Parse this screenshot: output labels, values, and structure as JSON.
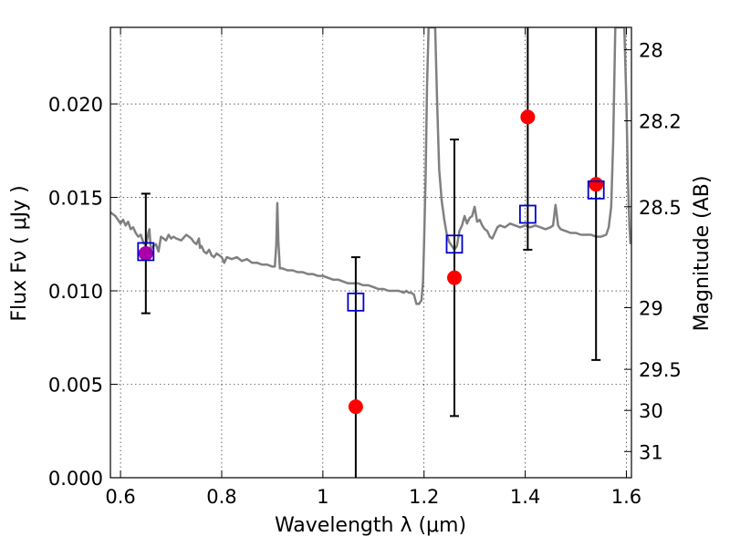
{
  "chart_data": {
    "type": "scatter",
    "title": "",
    "xlabel": "Wavelength  λ (μm)",
    "ylabel": "Flux  Fν  ( μJy )",
    "y2label": "Magnitude (AB)",
    "xlim": [
      0.58,
      1.61
    ],
    "ylim": [
      0.0,
      0.0241
    ],
    "grid": true,
    "x_ticks": [
      0.6,
      0.8,
      1.0,
      1.2,
      1.4,
      1.6
    ],
    "x_tick_labels": [
      "0.6",
      "0.8",
      "1",
      "1.2",
      "1.4",
      "1.6"
    ],
    "y_ticks": [
      0.0,
      0.005,
      0.01,
      0.015,
      0.02
    ],
    "y_tick_labels": [
      "0.000",
      "0.005",
      "0.010",
      "0.015",
      "0.020"
    ],
    "y2_ticks": [
      {
        "label": "28",
        "flux": 0.0229
      },
      {
        "label": "28.2",
        "flux": 0.0191
      },
      {
        "label": "28.5",
        "flux": 0.0145
      },
      {
        "label": "29",
        "flux": 0.0091
      },
      {
        "label": "29.5",
        "flux": 0.0058
      },
      {
        "label": "30",
        "flux": 0.0036
      },
      {
        "label": "31",
        "flux": 0.0014
      }
    ],
    "series": [
      {
        "name": "model-spectrum",
        "kind": "line",
        "color": "#808080",
        "points": [
          [
            0.58,
            0.0142
          ],
          [
            0.59,
            0.014
          ],
          [
            0.6,
            0.0136
          ],
          [
            0.605,
            0.0138
          ],
          [
            0.61,
            0.0135
          ],
          [
            0.615,
            0.0137
          ],
          [
            0.62,
            0.0133
          ],
          [
            0.625,
            0.0134
          ],
          [
            0.63,
            0.0131
          ],
          [
            0.635,
            0.0129
          ],
          [
            0.64,
            0.013
          ],
          [
            0.645,
            0.0126
          ],
          [
            0.65,
            0.0124
          ],
          [
            0.655,
            0.0131
          ],
          [
            0.657,
            0.0133
          ],
          [
            0.66,
            0.0122
          ],
          [
            0.665,
            0.0124
          ],
          [
            0.67,
            0.0125
          ],
          [
            0.675,
            0.0121
          ],
          [
            0.68,
            0.0129
          ],
          [
            0.685,
            0.0128
          ],
          [
            0.69,
            0.0127
          ],
          [
            0.695,
            0.013
          ],
          [
            0.7,
            0.0128
          ],
          [
            0.705,
            0.0129
          ],
          [
            0.71,
            0.0128
          ],
          [
            0.72,
            0.0127
          ],
          [
            0.73,
            0.013
          ],
          [
            0.74,
            0.0128
          ],
          [
            0.745,
            0.0126
          ],
          [
            0.75,
            0.0125
          ],
          [
            0.755,
            0.0128
          ],
          [
            0.757,
            0.0123
          ],
          [
            0.76,
            0.0124
          ],
          [
            0.765,
            0.0121
          ],
          [
            0.77,
            0.012
          ],
          [
            0.775,
            0.0122
          ],
          [
            0.78,
            0.0119
          ],
          [
            0.785,
            0.0118
          ],
          [
            0.79,
            0.012
          ],
          [
            0.8,
            0.0118
          ],
          [
            0.805,
            0.0115
          ],
          [
            0.81,
            0.0118
          ],
          [
            0.82,
            0.0117
          ],
          [
            0.83,
            0.0118
          ],
          [
            0.84,
            0.0116
          ],
          [
            0.85,
            0.0117
          ],
          [
            0.86,
            0.0115
          ],
          [
            0.87,
            0.0115
          ],
          [
            0.88,
            0.0114
          ],
          [
            0.89,
            0.0114
          ],
          [
            0.9,
            0.0113
          ],
          [
            0.905,
            0.0113
          ],
          [
            0.908,
            0.0125
          ],
          [
            0.91,
            0.0147
          ],
          [
            0.912,
            0.0126
          ],
          [
            0.915,
            0.0112
          ],
          [
            0.92,
            0.0112
          ],
          [
            0.93,
            0.0111
          ],
          [
            0.94,
            0.0111
          ],
          [
            0.95,
            0.011
          ],
          [
            0.96,
            0.011
          ],
          [
            0.97,
            0.0109
          ],
          [
            0.98,
            0.0109
          ],
          [
            0.99,
            0.0108
          ],
          [
            1.0,
            0.0108
          ],
          [
            1.01,
            0.0107
          ],
          [
            1.02,
            0.0106
          ],
          [
            1.03,
            0.0106
          ],
          [
            1.04,
            0.0105
          ],
          [
            1.05,
            0.0104
          ],
          [
            1.06,
            0.0104
          ],
          [
            1.07,
            0.0104
          ],
          [
            1.08,
            0.0103
          ],
          [
            1.09,
            0.0103
          ],
          [
            1.1,
            0.0102
          ],
          [
            1.11,
            0.0101
          ],
          [
            1.12,
            0.0101
          ],
          [
            1.13,
            0.01
          ],
          [
            1.14,
            0.01
          ],
          [
            1.15,
            0.01
          ],
          [
            1.16,
            0.0099
          ],
          [
            1.165,
            0.01
          ],
          [
            1.17,
            0.0099
          ],
          [
            1.175,
            0.0099
          ],
          [
            1.18,
            0.0098
          ],
          [
            1.185,
            0.0093
          ],
          [
            1.19,
            0.0093
          ],
          [
            1.195,
            0.0095
          ],
          [
            1.198,
            0.0105
          ],
          [
            1.2,
            0.0125
          ],
          [
            1.203,
            0.016
          ],
          [
            1.206,
            0.021
          ],
          [
            1.209,
            0.0241
          ],
          [
            1.222,
            0.0241
          ],
          [
            1.226,
            0.02
          ],
          [
            1.23,
            0.0165
          ],
          [
            1.235,
            0.0148
          ],
          [
            1.24,
            0.0138
          ],
          [
            1.245,
            0.013
          ],
          [
            1.25,
            0.0126
          ],
          [
            1.255,
            0.0124
          ],
          [
            1.26,
            0.0122
          ],
          [
            1.265,
            0.0124
          ],
          [
            1.27,
            0.0132
          ],
          [
            1.275,
            0.0135
          ],
          [
            1.28,
            0.014
          ],
          [
            1.285,
            0.0136
          ],
          [
            1.29,
            0.0139
          ],
          [
            1.295,
            0.014
          ],
          [
            1.3,
            0.0145
          ],
          [
            1.305,
            0.0137
          ],
          [
            1.31,
            0.0138
          ],
          [
            1.315,
            0.0135
          ],
          [
            1.32,
            0.0133
          ],
          [
            1.325,
            0.0132
          ],
          [
            1.33,
            0.0129
          ],
          [
            1.335,
            0.0128
          ],
          [
            1.34,
            0.0131
          ],
          [
            1.345,
            0.0134
          ],
          [
            1.35,
            0.0135
          ],
          [
            1.36,
            0.0134
          ],
          [
            1.37,
            0.0136
          ],
          [
            1.38,
            0.0135
          ],
          [
            1.39,
            0.0134
          ],
          [
            1.4,
            0.0135
          ],
          [
            1.41,
            0.0134
          ],
          [
            1.42,
            0.0135
          ],
          [
            1.43,
            0.0134
          ],
          [
            1.44,
            0.0133
          ],
          [
            1.45,
            0.0134
          ],
          [
            1.455,
            0.0135
          ],
          [
            1.46,
            0.0146
          ],
          [
            1.465,
            0.0135
          ],
          [
            1.47,
            0.0133
          ],
          [
            1.48,
            0.0132
          ],
          [
            1.49,
            0.0131
          ],
          [
            1.5,
            0.0131
          ],
          [
            1.51,
            0.013
          ],
          [
            1.52,
            0.013
          ],
          [
            1.53,
            0.013
          ],
          [
            1.54,
            0.0129
          ],
          [
            1.55,
            0.0129
          ],
          [
            1.56,
            0.013
          ],
          [
            1.565,
            0.0134
          ],
          [
            1.57,
            0.0145
          ],
          [
            1.574,
            0.018
          ],
          [
            1.578,
            0.0241
          ],
          [
            1.596,
            0.0241
          ],
          [
            1.6,
            0.02
          ],
          [
            1.603,
            0.016
          ],
          [
            1.606,
            0.0135
          ],
          [
            1.608,
            0.0125
          ]
        ]
      },
      {
        "name": "model-photometry",
        "kind": "open-square",
        "color": "#0000cc",
        "x": [
          0.65,
          1.065,
          1.26,
          1.405,
          1.54
        ],
        "y": [
          0.0121,
          0.0094,
          0.0125,
          0.0141,
          0.0154
        ]
      },
      {
        "name": "observed-photometry",
        "kind": "filled-circle",
        "color": "#ff0000",
        "x": [
          0.65,
          1.065,
          1.26,
          1.405,
          1.54
        ],
        "y": [
          0.012,
          0.0038,
          0.0107,
          0.0193,
          0.0157
        ],
        "yerr_low": [
          0.0088,
          0.0,
          0.0033,
          0.0122,
          0.0063
        ],
        "yerr_high": [
          0.0152,
          0.0118,
          0.0181,
          0.0241,
          0.0241
        ],
        "point_colors": [
          "#aa00aa",
          "#ff0000",
          "#ff0000",
          "#ff0000",
          "#ff0000"
        ]
      }
    ]
  }
}
